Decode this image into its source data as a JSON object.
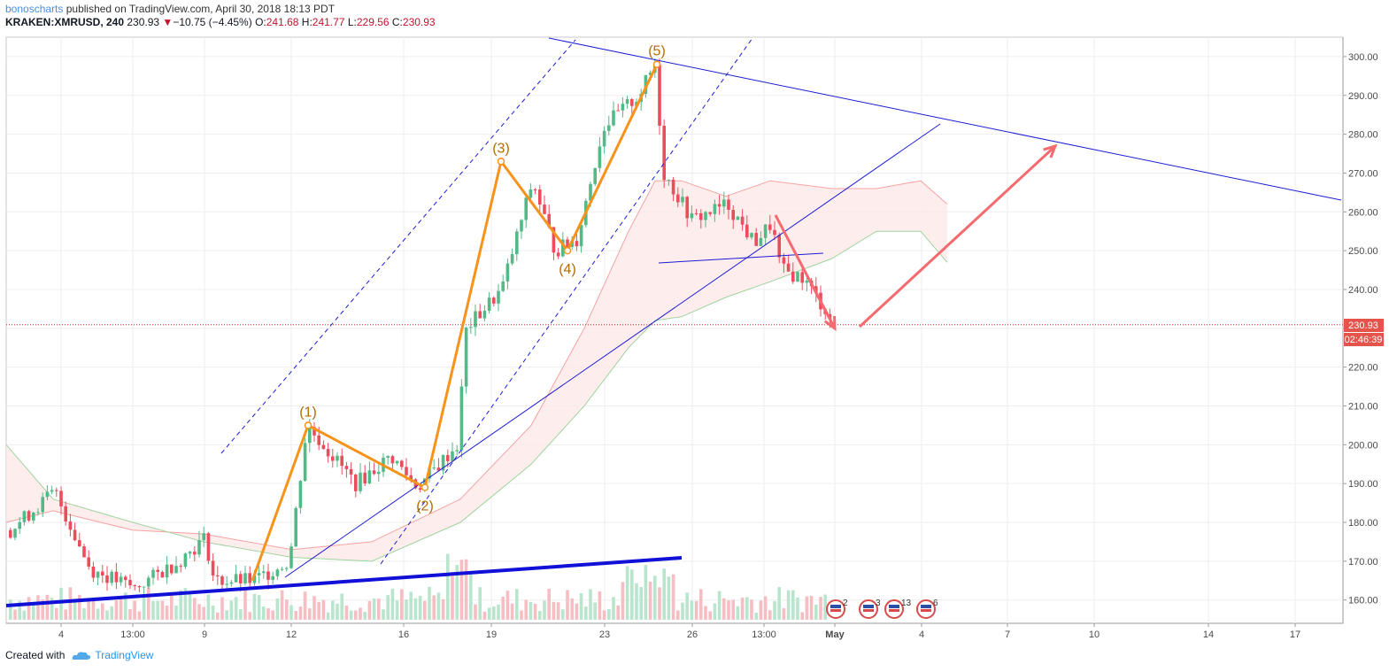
{
  "header": {
    "author": "bonoscharts",
    "published": "published on TradingView.com, April 30, 2018 18:13 PDT",
    "symbol": "KRAKEN:XMRUSD, 240",
    "last": "230.93",
    "change_arrow": "▼",
    "change": "−10.75 (−4.45%)",
    "o_label": "O:",
    "o": "241.68",
    "h_label": "H:",
    "h": "241.77",
    "l_label": "L:",
    "l": "229.56",
    "c_label": "C:",
    "c": "230.93"
  },
  "price_badge": {
    "price": "230.93",
    "countdown": "02:46:39"
  },
  "wave_labels": [
    "(1)",
    "(2)",
    "(3)",
    "(4)",
    "(5)"
  ],
  "event_badges": [
    "2",
    "3",
    "13",
    "6"
  ],
  "footer": {
    "created_with": "Created with",
    "brand": "TradingView"
  },
  "colors": {
    "up": "#53b987",
    "down": "#eb4d5c",
    "wave": "#f7931a",
    "trend": "#1b1bd6",
    "arrow": "#f46a6f",
    "price_line": "#d32f2f"
  },
  "chart_data": {
    "type": "candlestick",
    "symbol": "KRAKEN:XMRUSD",
    "timeframe": "240",
    "ylim": [
      154,
      305
    ],
    "y_ticks": [
      160,
      170,
      180,
      190,
      200,
      210,
      220,
      230,
      240,
      250,
      260,
      270,
      280,
      290,
      300
    ],
    "y_tick_labels": [
      "160.00",
      "170.00",
      "180.00",
      "190.00",
      "200.00",
      "210.00",
      "220.00",
      "230.00",
      "240.00",
      "250.00",
      "260.00",
      "270.00",
      "280.00",
      "290.00",
      "300.00"
    ],
    "x_tick_labels": [
      "4",
      "13:00",
      "9",
      "12",
      "16",
      "19",
      "23",
      "26",
      "13:00",
      "May",
      "4",
      "7",
      "10",
      "14",
      "17"
    ],
    "wave_points": [
      165,
      205,
      189,
      273,
      250,
      298
    ],
    "current_price": 230.93,
    "grid": true,
    "legend": "none"
  }
}
